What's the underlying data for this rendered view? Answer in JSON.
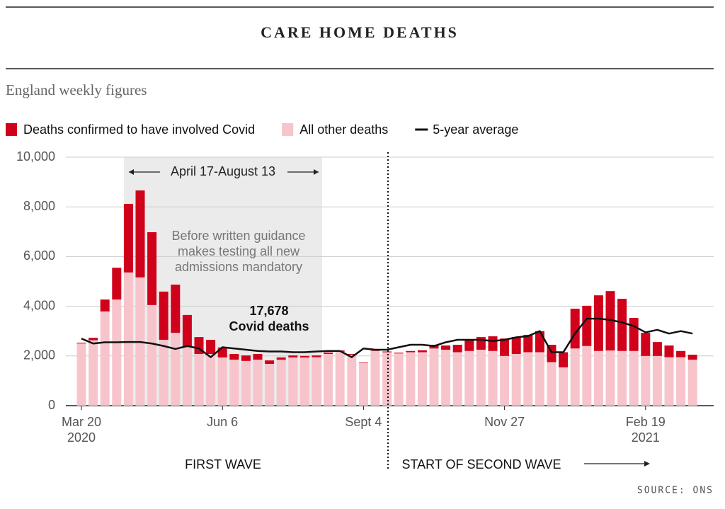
{
  "chart_data": {
    "type": "bar",
    "title": "CARE HOME DEATHS",
    "subtitle": "England weekly figures",
    "categories": [
      "Mar 20\n2020",
      null,
      null,
      null,
      null,
      null,
      null,
      null,
      null,
      null,
      null,
      null,
      "Jun 6",
      null,
      null,
      null,
      null,
      null,
      null,
      null,
      null,
      null,
      null,
      null,
      "Sept 4",
      null,
      null,
      null,
      null,
      null,
      null,
      null,
      null,
      null,
      null,
      null,
      "Nov 27",
      null,
      null,
      null,
      null,
      null,
      null,
      null,
      null,
      null,
      null,
      null,
      "Feb 19\n2021",
      null,
      null,
      null,
      null
    ],
    "series": [
      {
        "name": "Deaths confirmed to have involved Covid",
        "color": "#d0021b",
        "values": [
          30,
          100,
          480,
          1280,
          2760,
          3500,
          2930,
          1940,
          1940,
          1290,
          680,
          570,
          400,
          230,
          220,
          230,
          140,
          90,
          80,
          60,
          70,
          60,
          50,
          30,
          20,
          20,
          30,
          30,
          50,
          80,
          150,
          170,
          300,
          450,
          510,
          590,
          700,
          680,
          700,
          850,
          700,
          610,
          1600,
          1620,
          2240,
          2390,
          2100,
          1330,
          930,
          560,
          470,
          250,
          200
        ]
      },
      {
        "name": "All other deaths",
        "color": "#f7c4cb",
        "values": [
          2500,
          2630,
          3790,
          4270,
          5360,
          5160,
          4050,
          2650,
          2930,
          2360,
          2080,
          2080,
          1940,
          1850,
          1800,
          1850,
          1680,
          1850,
          1940,
          1940,
          1950,
          2080,
          2170,
          2050,
          1720,
          2200,
          2150,
          2100,
          2150,
          2150,
          2300,
          2250,
          2150,
          2200,
          2250,
          2200,
          2000,
          2080,
          2150,
          2150,
          1750,
          1540,
          2300,
          2400,
          2200,
          2220,
          2200,
          2200,
          2000,
          2000,
          1950,
          1950,
          1850
        ]
      },
      {
        "name": "5-year average",
        "color": "#111111",
        "type": "line",
        "values": [
          2700,
          2500,
          2550,
          2550,
          2560,
          2560,
          2500,
          2400,
          2280,
          2400,
          2300,
          1950,
          2350,
          2300,
          2250,
          2200,
          2180,
          2180,
          2150,
          2150,
          2180,
          2200,
          2200,
          1950,
          2300,
          2250,
          2250,
          2350,
          2450,
          2450,
          2400,
          2550,
          2650,
          2650,
          2650,
          2600,
          2650,
          2750,
          2800,
          3000,
          2150,
          2150,
          2900,
          3500,
          3500,
          3450,
          3350,
          3200,
          2950,
          3050,
          2900,
          3000,
          2900
        ]
      }
    ],
    "ylim": [
      0,
      10000
    ],
    "yticks": [
      0,
      {
        "value": 2000,
        "label": "2,000"
      },
      {
        "value": 4000,
        "label": "4,000"
      },
      {
        "value": 6000,
        "label": "6,000"
      },
      {
        "value": 8000,
        "label": "8,000"
      },
      {
        "value": 10000,
        "label": "10,000"
      }
    ],
    "grid": true,
    "annotations": {
      "period": "April 17-August 13",
      "guidance": "Before written guidance\nmakes testing all new\nadmissions mandatory",
      "total": "17,678\nCovid deaths",
      "first_wave": "FIRST WAVE",
      "second_wave": "START OF SECOND WAVE"
    },
    "source": "SOURCE: ONS"
  }
}
